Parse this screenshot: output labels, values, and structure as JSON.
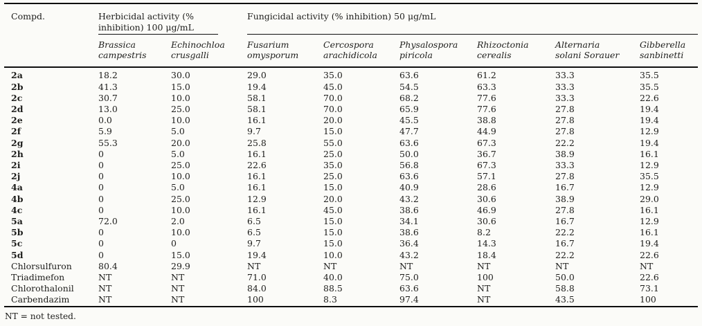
{
  "page": {
    "background_color": "#fbfbf8",
    "text_color": "#1d1d1b",
    "rule_color": "#0e0e0e"
  },
  "table": {
    "compound_column_header": "Compd.",
    "group_headers": [
      {
        "label": "Herbicidal activity (% inhibition) 100 μg/mL",
        "colspan": 2
      },
      {
        "label": "Fungicidal activity (% inhibition) 50 μg/mL",
        "colspan": 6
      }
    ],
    "species_columns": [
      {
        "lines": [
          "Brassica",
          "campestris"
        ]
      },
      {
        "lines": [
          "Echinochloa",
          "crusgalli"
        ]
      },
      {
        "lines": [
          "Fusarium",
          "omysporum"
        ]
      },
      {
        "lines": [
          "Cercospora",
          "arachidicola"
        ]
      },
      {
        "lines": [
          "Physalospora",
          "piricola"
        ]
      },
      {
        "lines": [
          "Rhizoctonia",
          "cerealis"
        ]
      },
      {
        "lines": [
          "Alternaria",
          "solani Sorauer"
        ]
      },
      {
        "lines": [
          "Gibberella",
          "sanbinetti"
        ]
      }
    ],
    "rows": [
      {
        "compound": "2a",
        "bold": true,
        "values": [
          "18.2",
          "30.0",
          "29.0",
          "35.0",
          "63.6",
          "61.2",
          "33.3",
          "35.5"
        ]
      },
      {
        "compound": "2b",
        "bold": true,
        "values": [
          "41.3",
          "15.0",
          "19.4",
          "45.0",
          "54.5",
          "63.3",
          "33.3",
          "35.5"
        ]
      },
      {
        "compound": "2c",
        "bold": true,
        "values": [
          "30.7",
          "10.0",
          "58.1",
          "70.0",
          "68.2",
          "77.6",
          "33.3",
          "22.6"
        ]
      },
      {
        "compound": "2d",
        "bold": true,
        "values": [
          "13.0",
          "25.0",
          "58.1",
          "70.0",
          "65.9",
          "77.6",
          "27.8",
          "19.4"
        ]
      },
      {
        "compound": "2e",
        "bold": true,
        "values": [
          "0.0",
          "10.0",
          "16.1",
          "20.0",
          "45.5",
          "38.8",
          "27.8",
          "19.4"
        ]
      },
      {
        "compound": "2f",
        "bold": true,
        "values": [
          "5.9",
          "5.0",
          "9.7",
          "15.0",
          "47.7",
          "44.9",
          "27.8",
          "12.9"
        ]
      },
      {
        "compound": "2g",
        "bold": true,
        "values": [
          "55.3",
          "20.0",
          "25.8",
          "55.0",
          "63.6",
          "67.3",
          "22.2",
          "19.4"
        ]
      },
      {
        "compound": "2h",
        "bold": true,
        "values": [
          "0",
          "5.0",
          "16.1",
          "25.0",
          "50.0",
          "36.7",
          "38.9",
          "16.1"
        ]
      },
      {
        "compound": "2i",
        "bold": true,
        "values": [
          "0",
          "25.0",
          "22.6",
          "35.0",
          "56.8",
          "67.3",
          "33.3",
          "12.9"
        ]
      },
      {
        "compound": "2j",
        "bold": true,
        "values": [
          "0",
          "10.0",
          "16.1",
          "25.0",
          "63.6",
          "57.1",
          "27.8",
          "35.5"
        ]
      },
      {
        "compound": "4a",
        "bold": true,
        "values": [
          "0",
          "5.0",
          "16.1",
          "15.0",
          "40.9",
          "28.6",
          "16.7",
          "12.9"
        ]
      },
      {
        "compound": "4b",
        "bold": true,
        "values": [
          "0",
          "25.0",
          "12.9",
          "20.0",
          "43.2",
          "30.6",
          "38.9",
          "29.0"
        ]
      },
      {
        "compound": "4c",
        "bold": true,
        "values": [
          "0",
          "10.0",
          "16.1",
          "45.0",
          "38.6",
          "46.9",
          "27.8",
          "16.1"
        ]
      },
      {
        "compound": "5a",
        "bold": true,
        "values": [
          "72.0",
          "2.0",
          "6.5",
          "15.0",
          "34.1",
          "30.6",
          "16.7",
          "12.9"
        ]
      },
      {
        "compound": "5b",
        "bold": true,
        "values": [
          "0",
          "10.0",
          "6.5",
          "15.0",
          "38.6",
          "8.2",
          "22.2",
          "16.1"
        ]
      },
      {
        "compound": "5c",
        "bold": true,
        "values": [
          "0",
          "0",
          "9.7",
          "15.0",
          "36.4",
          "14.3",
          "16.7",
          "19.4"
        ]
      },
      {
        "compound": "5d",
        "bold": true,
        "values": [
          "0",
          "15.0",
          "19.4",
          "10.0",
          "43.2",
          "18.4",
          "22.2",
          "22.6"
        ]
      },
      {
        "compound": "Chlorsulfuron",
        "bold": false,
        "values": [
          "80.4",
          "29.9",
          "NT",
          "NT",
          "NT",
          "NT",
          "NT",
          "NT"
        ]
      },
      {
        "compound": "Triadimefon",
        "bold": false,
        "values": [
          "NT",
          "NT",
          "71.0",
          "40.0",
          "75.0",
          "100",
          "50.0",
          "22.6"
        ]
      },
      {
        "compound": "Chlorothalonil",
        "bold": false,
        "values": [
          "NT",
          "NT",
          "84.0",
          "88.5",
          "63.6",
          "NT",
          "58.8",
          "73.1"
        ]
      },
      {
        "compound": "Carbendazim",
        "bold": false,
        "values": [
          "NT",
          "NT",
          "100",
          "8.3",
          "97.4",
          "NT",
          "43.5",
          "100"
        ]
      }
    ],
    "footnote": "NT = not tested."
  }
}
